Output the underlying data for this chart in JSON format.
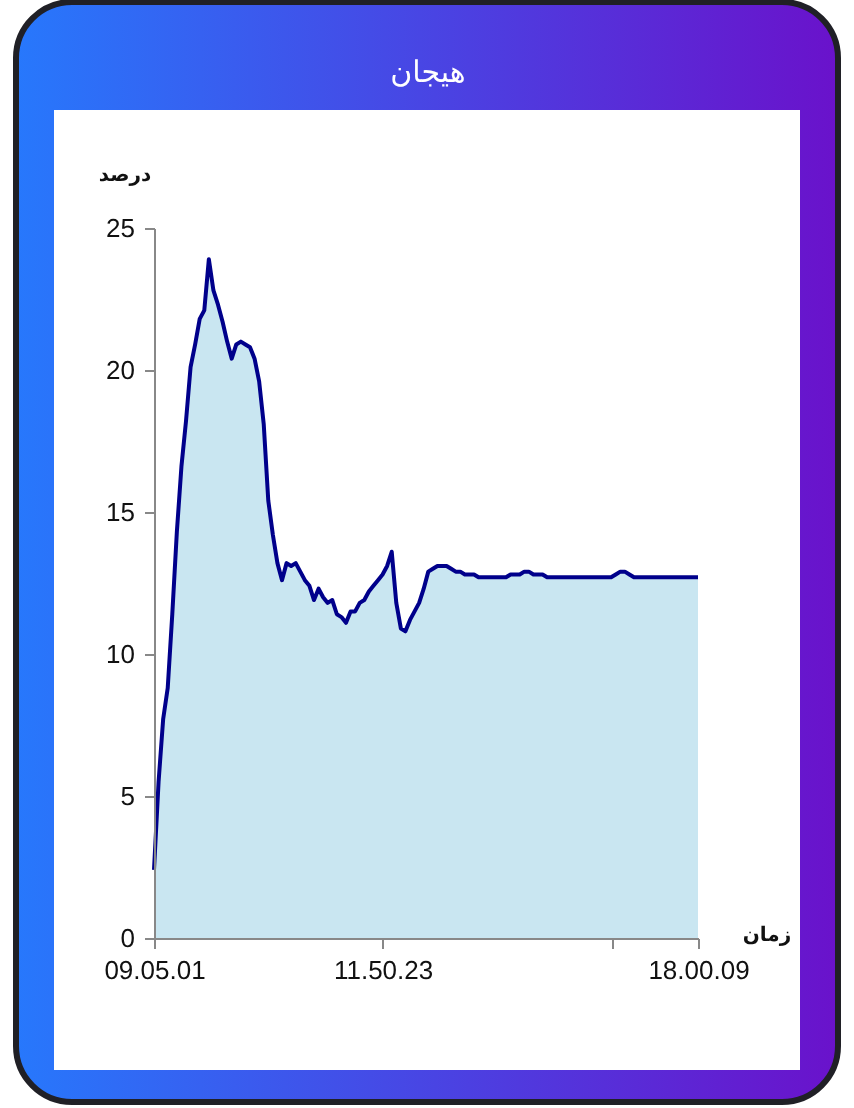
{
  "chart_data": {
    "type": "area",
    "title": "هیجان",
    "xlabel": "زمان",
    "ylabel": "درصد",
    "categories": [
      "09.05.01",
      null,
      null,
      null,
      null,
      null,
      null,
      null,
      null,
      null,
      null,
      null,
      null,
      null,
      null,
      null,
      null,
      null,
      null,
      null,
      null,
      null,
      null,
      null,
      null,
      null,
      null,
      null,
      null,
      null,
      null,
      null,
      null,
      null,
      null,
      null,
      null,
      null,
      null,
      null,
      null,
      null,
      null,
      null,
      null,
      null,
      null,
      null,
      null,
      null,
      "11.50.23",
      null,
      null,
      null,
      null,
      null,
      null,
      null,
      null,
      null,
      null,
      null,
      null,
      null,
      null,
      null,
      null,
      null,
      null,
      null,
      null,
      null,
      null,
      null,
      null,
      null,
      null,
      null,
      null,
      null,
      null,
      null,
      null,
      null,
      null,
      null,
      null,
      null,
      null,
      null,
      null,
      null,
      null,
      null,
      null,
      null,
      null,
      null,
      null,
      null,
      null,
      null,
      null,
      null,
      null,
      null,
      null,
      null,
      null,
      null,
      null,
      null,
      null,
      null,
      null,
      null,
      null,
      null,
      null,
      "18.00.09"
    ],
    "series": [
      {
        "color": "#00008b",
        "values": [
          2.4,
          5.5,
          7.7,
          8.8,
          11.4,
          14.3,
          16.6,
          18.2,
          20.1,
          20.9,
          21.8,
          22.1,
          23.9,
          22.8,
          22.3,
          21.7,
          21.0,
          20.4,
          20.9,
          21.0,
          20.9,
          20.8,
          20.4,
          19.6,
          18.1,
          15.4,
          14.2,
          13.2,
          12.6,
          13.2,
          13.1,
          13.2,
          12.9,
          12.6,
          12.4,
          11.9,
          12.3,
          12.0,
          11.8,
          11.9,
          11.4,
          11.3,
          11.1,
          11.5,
          11.5,
          11.8,
          11.9,
          12.2,
          12.4,
          12.6,
          12.8,
          13.1,
          13.6,
          11.8,
          10.9,
          10.8,
          11.2,
          11.5,
          11.8,
          12.3,
          12.9,
          13.0,
          13.1,
          13.1,
          13.1,
          13.0,
          12.9,
          12.9,
          12.8,
          12.8,
          12.8,
          12.7,
          12.7,
          12.7,
          12.7,
          12.7,
          12.7,
          12.7,
          12.8,
          12.8,
          12.8,
          12.9,
          12.9,
          12.8,
          12.8,
          12.8,
          12.7,
          12.7,
          12.7,
          12.7,
          12.7,
          12.7,
          12.7,
          12.7,
          12.7,
          12.7,
          12.7,
          12.7,
          12.7,
          12.7,
          12.7,
          12.8,
          12.9,
          12.9,
          12.8,
          12.7,
          12.7,
          12.7,
          12.7,
          12.7,
          12.7,
          12.7,
          12.7,
          12.7,
          12.7,
          12.7,
          12.7,
          12.7,
          12.7,
          12.7
        ]
      }
    ],
    "colors": [
      "#c9e6f1"
    ],
    "ylim": [
      0,
      25
    ],
    "yticks": [
      0,
      5,
      10,
      15,
      20,
      25
    ]
  }
}
